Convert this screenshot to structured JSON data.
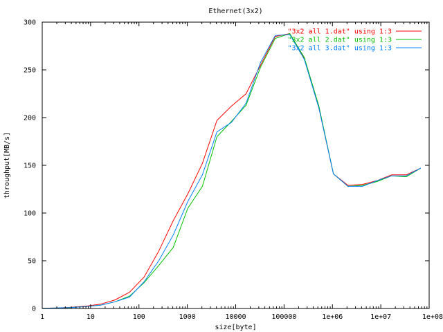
{
  "chart_data": {
    "type": "line",
    "title": "Ethernet(3x2)",
    "xlabel": "size[byte]",
    "ylabel": "throughput[MB/s]",
    "xscale": "log",
    "xlim": [
      1,
      100000000
    ],
    "ylim": [
      0,
      300
    ],
    "xticks": [
      {
        "value": 1,
        "label": "1"
      },
      {
        "value": 10,
        "label": "10"
      },
      {
        "value": 100,
        "label": "100"
      },
      {
        "value": 1000,
        "label": "1000"
      },
      {
        "value": 10000,
        "label": "10000"
      },
      {
        "value": 100000,
        "label": "100000"
      },
      {
        "value": 1000000,
        "label": "1e+06"
      },
      {
        "value": 10000000,
        "label": "1e+07"
      },
      {
        "value": 100000000,
        "label": "1e+08"
      }
    ],
    "yticks": [
      {
        "value": 0,
        "label": "0"
      },
      {
        "value": 50,
        "label": "50"
      },
      {
        "value": 100,
        "label": "100"
      },
      {
        "value": 150,
        "label": "150"
      },
      {
        "value": 200,
        "label": "200"
      },
      {
        "value": 250,
        "label": "250"
      },
      {
        "value": 300,
        "label": "300"
      }
    ],
    "grid": false,
    "legend_position": "top-right",
    "x": [
      1,
      2,
      4,
      8,
      16,
      32,
      64,
      128,
      256,
      512,
      1024,
      2048,
      4096,
      8192,
      16384,
      32768,
      65536,
      131072,
      262144,
      524288,
      1048576,
      2097152,
      4194304,
      8388608,
      16777216,
      33554432,
      67108864
    ],
    "series": [
      {
        "name": "\"3x2 all 1.dat\" using 1:3",
        "color": "#ff0000",
        "values": [
          0.3,
          0.6,
          1.2,
          2.5,
          4.5,
          9,
          17,
          33,
          60,
          92,
          120,
          152,
          197,
          212,
          225,
          255,
          285,
          288,
          262,
          210,
          141,
          129,
          130,
          134,
          140,
          140,
          147
        ]
      },
      {
        "name": "\"3x2 all 2.dat\" using 1:3",
        "color": "#00c000",
        "values": [
          0.2,
          0.5,
          1.0,
          2.0,
          3.5,
          7,
          13,
          27,
          45,
          64,
          105,
          128,
          180,
          196,
          213,
          253,
          283,
          288,
          263,
          212,
          141,
          128,
          129,
          133,
          139,
          138,
          147
        ]
      },
      {
        "name": "\"3x2 all 3.dat\" using 1:3",
        "color": "#0080ff",
        "values": [
          0.2,
          0.5,
          1.0,
          2.0,
          3.5,
          7,
          12,
          28,
          50,
          77,
          112,
          140,
          185,
          195,
          215,
          258,
          286,
          287,
          261,
          210,
          141,
          128,
          128,
          134,
          139,
          139,
          147
        ]
      }
    ]
  }
}
